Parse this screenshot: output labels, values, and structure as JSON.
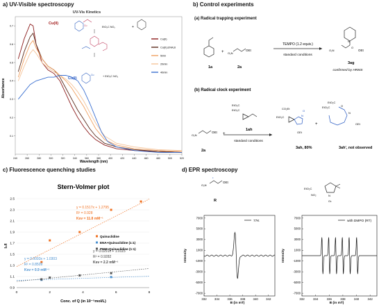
{
  "panel_a": {
    "title": "a) UV-Visible spectroscopy",
    "chart_title": "UV-Vis Kinetics",
    "ylabel": "Absorbance",
    "xlabel": "Wavelength (nm)",
    "cu2_label": "Cu(II)",
    "cu1_label": "Cu(I)",
    "reagent_label": "EtO₂C NO₂",
    "legend": [
      "Cu(II)",
      "Cu(II),ENA,B",
      "5min",
      "20min",
      "40min"
    ],
    "colors": {
      "cu2": "#8b1a1a",
      "ena": "#5a2a1a",
      "t5": "#f0a060",
      "t20": "#f5c49a",
      "t40": "#3a6fd0"
    }
  },
  "panel_b": {
    "title": "b) Control experiments",
    "radical_trap_title": "(a) Radical trapping experiment",
    "tempo_label": "TEMPO (1.2 equiv.)",
    "conditions": "standard conditions",
    "compound_1a": "1a",
    "compound_2a": "2a",
    "compound_3ag": "3ag",
    "hrms": "confirmed by HRMS",
    "radical_clock_title": "(b) Radical clock experiment",
    "compound_1ah": "1ah",
    "compound_3ah": "3ah, 80%",
    "compound_3ah_prime": "3ah', not observed",
    "ester_label": "OEt",
    "esters": "EtO₂C",
    "co2et": "CO₂Et"
  },
  "panel_c": {
    "title": "c) Fluorescence quenching studies",
    "chart_title": "Stern-Volmer plot",
    "ylabel": "I₀/I",
    "xlabel": "Conc. of Q (in 10⁻⁵mol/L)",
    "legend": [
      "Quinuclidine",
      "ENA+Quinuclidine (1:1)",
      "PNM+Quinuclidine (1:1)"
    ],
    "eq_orange": [
      "y = 0.1517x + 1.2795",
      "R² = 0.928",
      "Ksv = 11.8 mM⁻¹"
    ],
    "eq_blue": [
      "y = 0.0093x + 1.0303",
      "R² = 0.8509",
      "Ksv = 0.9 mM⁻¹"
    ],
    "eq_gray": [
      "y = 0.0291x + 1.0115",
      "R² = 0.9282",
      "Ksv = 2.2 mM⁻¹"
    ]
  },
  "panel_d": {
    "title": "d) EPR spectroscopy",
    "radical_label": "R",
    "legend_left": "77K",
    "legend_right": "with DMPO (RT)",
    "ylabel": "Intensity",
    "xlabel": "B (in mT)",
    "no2_label": "NO₂",
    "ester_label": "EtO₂C"
  },
  "chart_data": [
    {
      "type": "line",
      "title": "UV-Vis Kinetics",
      "xlabel": "Wavelength (nm)",
      "ylabel": "Absorbance",
      "xlim": [
        240,
        520
      ],
      "ylim": [
        0,
        0.75
      ],
      "xticks": [
        240,
        260,
        280,
        300,
        320,
        340,
        360,
        380,
        400,
        420,
        440,
        460,
        480,
        500,
        520
      ],
      "yticks": [
        0.1,
        0.2,
        0.3,
        0.4,
        0.5,
        0.6,
        0.7
      ],
      "series": [
        {
          "name": "Cu(II)",
          "color": "#8b1a1a",
          "x": [
            245,
            255,
            265,
            270,
            275,
            285,
            295,
            305,
            315,
            325,
            335,
            345,
            355,
            365,
            375,
            390,
            410,
            440,
            480,
            520
          ],
          "y": [
            0.52,
            0.63,
            0.71,
            0.7,
            0.6,
            0.5,
            0.46,
            0.44,
            0.4,
            0.33,
            0.26,
            0.2,
            0.15,
            0.11,
            0.08,
            0.05,
            0.03,
            0.02,
            0.015,
            0.01
          ]
        },
        {
          "name": "Cu(II),ENA,B",
          "color": "#5a2a1a",
          "x": [
            245,
            255,
            265,
            270,
            275,
            285,
            295,
            305,
            315,
            325,
            335,
            345,
            355,
            365,
            375,
            390,
            410,
            440,
            480,
            520
          ],
          "y": [
            0.45,
            0.56,
            0.64,
            0.66,
            0.6,
            0.52,
            0.48,
            0.46,
            0.42,
            0.36,
            0.3,
            0.24,
            0.19,
            0.14,
            0.1,
            0.06,
            0.04,
            0.025,
            0.015,
            0.01
          ]
        },
        {
          "name": "5min",
          "color": "#f0a060",
          "x": [
            245,
            255,
            265,
            270,
            275,
            285,
            295,
            305,
            315,
            325,
            335,
            345,
            355,
            365,
            375,
            390,
            410,
            440,
            480,
            520
          ],
          "y": [
            0.42,
            0.52,
            0.6,
            0.62,
            0.58,
            0.52,
            0.48,
            0.46,
            0.43,
            0.4,
            0.36,
            0.31,
            0.26,
            0.2,
            0.14,
            0.08,
            0.05,
            0.03,
            0.02,
            0.015
          ]
        },
        {
          "name": "20min",
          "color": "#f5c49a",
          "x": [
            245,
            255,
            265,
            270,
            275,
            285,
            295,
            305,
            315,
            325,
            335,
            345,
            355,
            365,
            375,
            390,
            410,
            440,
            480,
            520
          ],
          "y": [
            0.4,
            0.48,
            0.55,
            0.57,
            0.55,
            0.5,
            0.47,
            0.45,
            0.43,
            0.41,
            0.38,
            0.34,
            0.29,
            0.23,
            0.17,
            0.1,
            0.06,
            0.04,
            0.025,
            0.02
          ]
        },
        {
          "name": "40min",
          "color": "#3a6fd0",
          "x": [
            245,
            255,
            265,
            275,
            285,
            295,
            305,
            315,
            325,
            335,
            345,
            355,
            365,
            375,
            385,
            395,
            410,
            440,
            480,
            520
          ],
          "y": [
            0.3,
            0.34,
            0.38,
            0.4,
            0.41,
            0.42,
            0.42,
            0.43,
            0.43,
            0.42,
            0.4,
            0.35,
            0.28,
            0.2,
            0.12,
            0.07,
            0.04,
            0.02,
            0.01,
            0.01
          ]
        }
      ]
    },
    {
      "type": "scatter",
      "title": "Stern-Volmer plot",
      "xlabel": "Conc. of Q (in 10⁻⁵mol/L)",
      "ylabel": "I₀/I",
      "xlim": [
        0,
        8
      ],
      "ylim": [
        0.9,
        2.5
      ],
      "xticks": [
        0,
        2,
        4,
        6,
        8
      ],
      "yticks": [
        0.9,
        1.1,
        1.3,
        1.5,
        1.7,
        1.9,
        2.1,
        2.3,
        2.5
      ],
      "series": [
        {
          "name": "Quinuclidine",
          "color": "#f07020",
          "x": [
            1.5,
            2.0,
            3.8,
            5.7,
            7.5
          ],
          "y": [
            1.36,
            1.75,
            1.9,
            2.3,
            2.45
          ],
          "fit": [
            0.1517,
            1.2795
          ]
        },
        {
          "name": "ENA+Quinuclidine (1:1)",
          "color": "#4a90d0",
          "x": [
            1.5,
            5.7
          ],
          "y": [
            1.04,
            1.09
          ],
          "fit": [
            0.0093,
            1.0303
          ]
        },
        {
          "name": "PNM+Quinuclidine (1:1)",
          "color": "#555555",
          "x": [
            1.5,
            2.0,
            3.8,
            5.7
          ],
          "y": [
            1.05,
            1.08,
            1.12,
            1.16
          ],
          "fit": [
            0.0291,
            1.0115
          ]
        }
      ]
    },
    {
      "type": "line",
      "title": "",
      "legend": "77K",
      "xlabel": "B (in mT)",
      "ylabel": "Intensity",
      "xlim": [
        332,
        343
      ],
      "ylim": [
        -7500,
        7500
      ],
      "xticks": [
        332,
        334,
        336,
        338,
        340,
        342
      ],
      "yticks": [
        -7000,
        -5000,
        -3000,
        -1000,
        1000,
        3000,
        5000,
        7000
      ]
    },
    {
      "type": "line",
      "title": "",
      "legend": "with DMPO (RT)",
      "xlabel": "B (in mT)",
      "ylabel": "Intensity",
      "xlim": [
        332,
        343
      ],
      "ylim": [
        -7500,
        7500
      ],
      "xticks": [
        332,
        334,
        336,
        338,
        340,
        342
      ],
      "yticks": [
        -7000,
        -5000,
        -3000,
        -1000,
        1000,
        3000,
        5000,
        7000
      ]
    }
  ]
}
